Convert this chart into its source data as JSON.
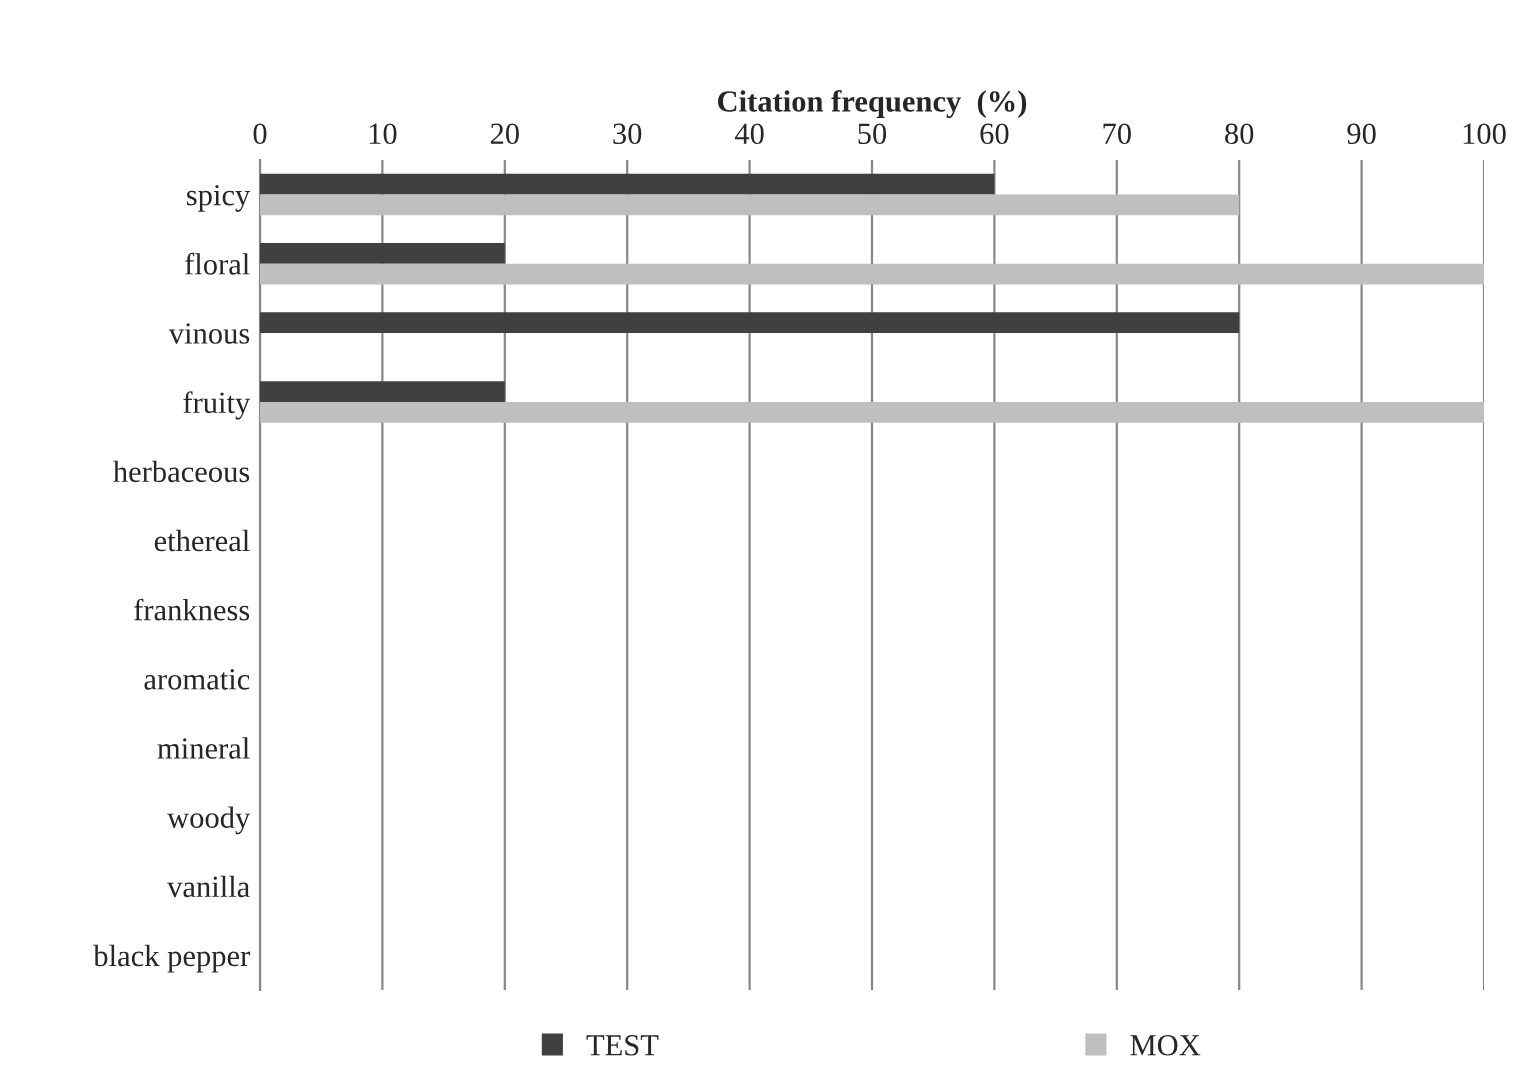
{
  "chart_data": {
    "type": "bar",
    "orientation": "horizontal",
    "xlabel": "Citation frequency  (%)",
    "categories": [
      "spicy",
      "floral",
      "vinous",
      "fruity",
      "herbaceous",
      "ethereal",
      "frankness",
      "aromatic",
      "mineral",
      "woody",
      "vanilla",
      "black pepper"
    ],
    "series": [
      {
        "name": "TEST",
        "color": "#404040",
        "values": [
          60,
          20,
          80,
          20,
          null,
          null,
          null,
          null,
          null,
          null,
          null,
          null
        ]
      },
      {
        "name": "MOX",
        "color": "#bfbfbf",
        "values": [
          80,
          100,
          null,
          100,
          null,
          null,
          null,
          null,
          null,
          null,
          null,
          null
        ]
      }
    ],
    "xlim": [
      0,
      100
    ],
    "xticks": [
      0,
      10,
      20,
      30,
      40,
      50,
      60,
      70,
      80,
      90,
      100
    ],
    "grid": "x",
    "legend": "bottom"
  }
}
